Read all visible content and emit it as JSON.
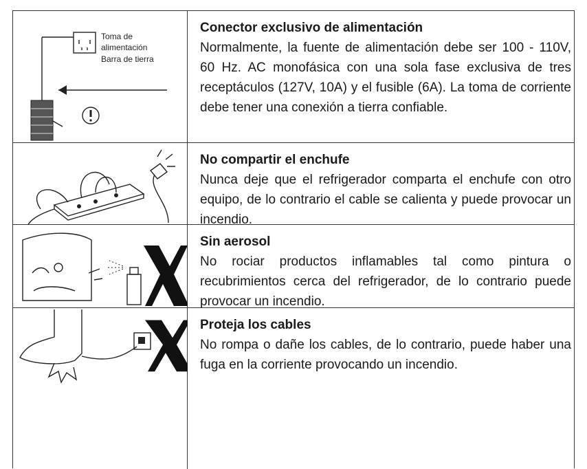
{
  "table": {
    "rows": [
      {
        "image_labels": [
          "Toma de",
          "alimentación",
          "Barra de tierra"
        ],
        "title": "Conector exclusivo de alimentación",
        "text": "Normalmente, la fuente de alimentación debe ser 100 - 110V, 60 Hz. AC monofásica con una sola fase exclusiva de tres receptáculos (127V, 10A) y el fusible (6A). La toma de corriente debe tener una conexión a tierra confiable."
      },
      {
        "title": "No compartir el enchufe",
        "text": "Nunca deje que el refrigerador comparta el enchufe con otro equipo, de lo contrario el cable se calienta y puede provocar un incendio."
      },
      {
        "title": "Sin aerosol",
        "text": "No rociar productos inflamables tal como pintura o recubrimientos cerca del refrigerador, de lo contrario puede provocar un incendio."
      },
      {
        "title": "Proteja los cables",
        "text": "No rompa o dañe los cables, de lo contrario, puede haber una fuga en la corriente provocando un incendio."
      }
    ]
  }
}
